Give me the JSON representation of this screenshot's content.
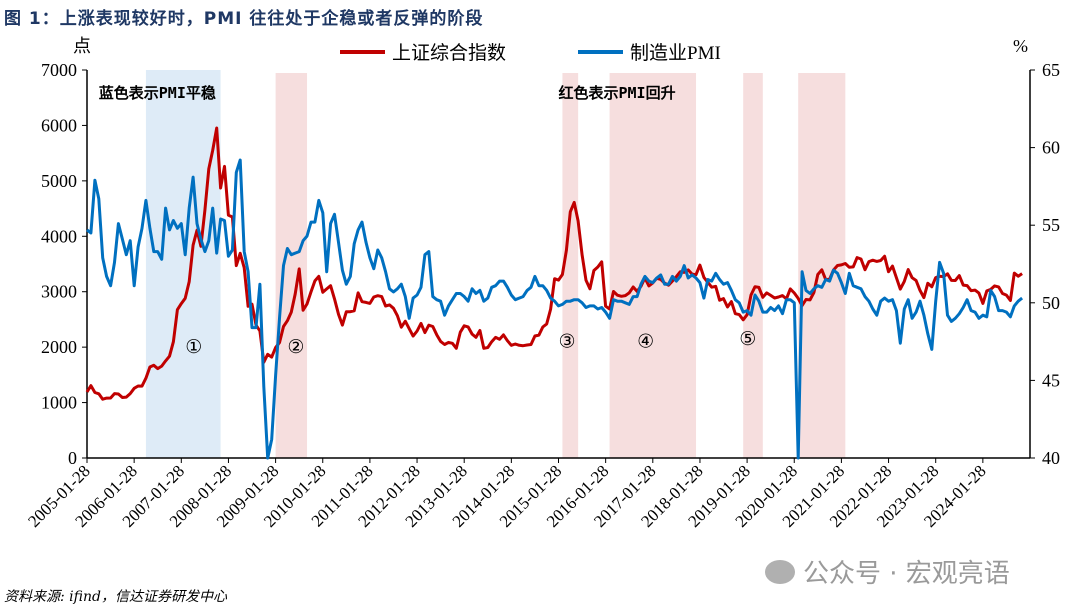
{
  "title": "图 1：上涨表现较好时，PMI 往往处于企稳或者反弹的阶段",
  "source": "资料来源: ifind，信达证券研发中心",
  "watermark": "公众号 · 宏观亮语",
  "chart_data": {
    "type": "line",
    "left_unit": "点",
    "right_unit": "%",
    "left_ylim": [
      0,
      7000
    ],
    "left_ticks": [
      0,
      1000,
      2000,
      3000,
      4000,
      5000,
      6000,
      7000
    ],
    "right_ylim": [
      40,
      65
    ],
    "right_ticks": [
      40,
      45,
      50,
      55,
      60,
      65
    ],
    "x_ticks": [
      "2005-01-28",
      "2006-01-28",
      "2007-01-28",
      "2008-01-28",
      "2009-01-28",
      "2010-01-28",
      "2011-01-28",
      "2012-01-28",
      "2013-01-28",
      "2014-01-28",
      "2015-01-28",
      "2016-01-28",
      "2017-01-28",
      "2018-01-28",
      "2019-01-28",
      "2020-01-28",
      "2021-01-28",
      "2022-01-28",
      "2023-01-28",
      "2024-01-28"
    ],
    "x_start": "2005-01",
    "legend_placement": "top",
    "grid": false,
    "colors": {
      "sse": "#c00000",
      "pmi": "#0070c0",
      "blue_band": "#deebf7",
      "red_band": "#f6dede"
    },
    "series": [
      {
        "name": "上证综合指数",
        "axis": "left",
        "values": [
          1190,
          1306,
          1181,
          1159,
          1060,
          1080,
          1083,
          1162,
          1155,
          1092,
          1099,
          1161,
          1258,
          1299,
          1298,
          1440,
          1642,
          1672,
          1612,
          1658,
          1752,
          1837,
          2099,
          2675,
          2786,
          2881,
          3183,
          3841,
          4109,
          3820,
          4471,
          5218,
          5552,
          5954,
          4871,
          5261,
          4383,
          4348,
          3472,
          3693,
          3433,
          2736,
          2775,
          2397,
          2293,
          1729,
          1871,
          1821,
          1991,
          2082,
          2373,
          2477,
          2632,
          2959,
          3412,
          2667,
          2779,
          2996,
          3195,
          3277,
          2989,
          3051,
          3109,
          2870,
          2592,
          2398,
          2638,
          2639,
          2655,
          2979,
          2820,
          2808,
          2790,
          2905,
          2928,
          2911,
          2743,
          2762,
          2701,
          2568,
          2359,
          2468,
          2333,
          2199,
          2292,
          2428,
          2262,
          2396,
          2373,
          2225,
          2103,
          2047,
          2086,
          2069,
          1980,
          2269,
          2385,
          2365,
          2236,
          2178,
          2300,
          1979,
          1994,
          2098,
          2175,
          2141,
          2220,
          2116,
          2033,
          2056,
          2033,
          2026,
          2039,
          2048,
          2201,
          2217,
          2364,
          2420,
          2683,
          3235,
          3210,
          3310,
          3748,
          4441,
          4612,
          4277,
          3664,
          3206,
          3053,
          3383,
          3445,
          3539,
          2738,
          2688,
          3004,
          2938,
          2917,
          2930,
          2979,
          3085,
          3005,
          3100,
          3250,
          3104,
          3159,
          3242,
          3223,
          3155,
          3117,
          3192,
          3273,
          3361,
          3349,
          3393,
          3317,
          3307,
          3481,
          3259,
          3169,
          3082,
          3095,
          2847,
          2876,
          2725,
          2821,
          2603,
          2588,
          2494,
          2585,
          2941,
          3091,
          3078,
          2899,
          2979,
          2933,
          2886,
          2905,
          2929,
          2871,
          3050,
          2977,
          2880,
          2750,
          2860,
          2852,
          2985,
          3310,
          3396,
          3218,
          3225,
          3392,
          3473,
          3483,
          3509,
          3441,
          3447,
          3615,
          3591,
          3397,
          3544,
          3568,
          3547,
          3564,
          3640,
          3361,
          3462,
          3252,
          3047,
          3186,
          3399,
          3253,
          3202,
          3024,
          2893,
          3151,
          3089,
          3255,
          3280,
          3273,
          3323,
          3205,
          3202,
          3291,
          3120,
          3110,
          3018,
          3030,
          2975,
          2789,
          3015,
          3041,
          3105,
          3087,
          2967,
          2939,
          2842,
          3336,
          3279,
          3326
        ]
      },
      {
        "name": "制造业PMI",
        "axis": "right",
        "values": [
          54.7,
          54.5,
          57.9,
          56.7,
          52.9,
          51.7,
          51.1,
          52.6,
          55.1,
          54.1,
          53.1,
          54.0,
          51.1,
          53.6,
          54.8,
          56.6,
          54.8,
          53.3,
          53.3,
          52.8,
          56.1,
          54.7,
          55.3,
          54.8,
          55.1,
          53.1,
          56.1,
          58.1,
          55.1,
          54.1,
          53.3,
          54.0,
          56.1,
          53.2,
          55.4,
          55.3,
          53.0,
          53.4,
          58.4,
          59.2,
          53.3,
          52.0,
          48.4,
          48.4,
          51.2,
          44.6,
          38.8,
          41.2,
          45.3,
          49.0,
          52.4,
          53.5,
          53.1,
          53.2,
          53.3,
          54.0,
          54.3,
          55.2,
          55.2,
          56.6,
          55.8,
          52.0,
          55.1,
          55.7,
          53.9,
          52.1,
          51.2,
          51.7,
          53.8,
          54.7,
          55.2,
          53.9,
          52.9,
          52.2,
          53.4,
          52.9,
          52.0,
          50.9,
          50.7,
          50.9,
          51.2,
          50.4,
          49.0,
          50.3,
          50.5,
          51.0,
          53.1,
          53.3,
          50.4,
          50.2,
          50.1,
          49.2,
          49.8,
          50.2,
          50.6,
          50.6,
          50.4,
          50.1,
          50.9,
          50.6,
          50.8,
          50.1,
          50.3,
          51.0,
          51.1,
          51.4,
          51.4,
          51.0,
          50.5,
          50.2,
          50.3,
          50.4,
          50.8,
          51.0,
          51.7,
          51.1,
          51.1,
          50.8,
          50.3,
          50.1,
          49.8,
          49.9,
          50.1,
          50.1,
          50.2,
          50.2,
          50.0,
          49.7,
          49.8,
          49.8,
          49.6,
          49.7,
          49.4,
          49.0,
          50.2,
          50.1,
          50.1,
          50.0,
          49.9,
          50.4,
          50.4,
          51.2,
          51.7,
          51.4,
          51.3,
          51.6,
          51.8,
          51.2,
          51.2,
          51.7,
          51.4,
          51.7,
          52.4,
          51.6,
          51.8,
          51.6,
          51.3,
          50.3,
          51.5,
          51.4,
          51.9,
          51.5,
          51.2,
          51.3,
          50.8,
          50.2,
          50.0,
          49.4,
          49.5,
          49.2,
          50.5,
          50.1,
          49.4,
          49.4,
          49.7,
          49.5,
          49.8,
          49.3,
          50.2,
          50.2,
          50.0,
          35.7,
          52.0,
          50.8,
          50.6,
          50.9,
          51.1,
          51.0,
          51.5,
          51.4,
          52.1,
          51.9,
          51.3,
          50.6,
          51.9,
          51.1,
          51.0,
          50.9,
          50.4,
          50.1,
          49.6,
          49.2,
          50.1,
          50.3,
          50.1,
          50.2,
          49.5,
          47.4,
          49.6,
          50.2,
          49.0,
          49.4,
          50.1,
          49.2,
          48.0,
          47.0,
          50.1,
          52.6,
          51.9,
          49.2,
          48.8,
          49.0,
          49.3,
          49.7,
          50.2,
          49.5,
          49.4,
          49.0,
          49.2,
          49.1,
          50.8,
          50.4,
          49.5,
          49.5,
          49.4,
          49.1,
          49.8,
          50.1,
          50.3
        ]
      }
    ],
    "bands": [
      {
        "type": "blue",
        "from": "2006-04",
        "to": "2007-11"
      },
      {
        "type": "red",
        "from": "2009-01",
        "to": "2009-09"
      },
      {
        "type": "red",
        "from": "2015-02",
        "to": "2015-06"
      },
      {
        "type": "red",
        "from": "2016-02",
        "to": "2017-12"
      },
      {
        "type": "red",
        "from": "2018-12",
        "to": "2019-05"
      },
      {
        "type": "red",
        "from": "2020-02",
        "to": "2021-02"
      }
    ],
    "annotations": [
      {
        "text": "蓝色表示PMI平稳",
        "at": "2005-04",
        "y": 6600
      },
      {
        "text": "红色表示PMI回升",
        "at": "2015-01",
        "y": 6600
      },
      {
        "text": "①",
        "at": "2007-02",
        "y": 2000
      },
      {
        "text": "②",
        "at": "2009-04",
        "y": 2000
      },
      {
        "text": "③",
        "at": "2015-01",
        "y": 2100
      },
      {
        "text": "④",
        "at": "2016-09",
        "y": 2100
      },
      {
        "text": "⑤",
        "at": "2018-11",
        "y": 2150
      }
    ]
  }
}
